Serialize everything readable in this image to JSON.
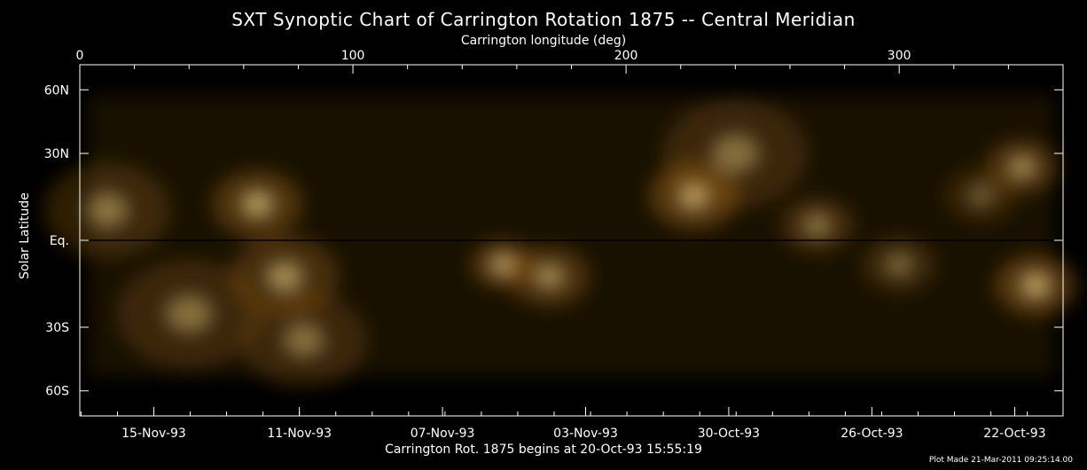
{
  "chart_data": {
    "type": "heatmap",
    "title": "SXT Synoptic Chart of Carrington Rotation 1875 -- Central Meridian",
    "top_axis": {
      "label": "Carrington longitude (deg)",
      "range": [
        0,
        360
      ],
      "ticks": [
        0,
        100,
        200,
        300
      ],
      "tick_labels": [
        "0",
        "100",
        "200",
        "300"
      ]
    },
    "left_axis": {
      "label": "Solar Latitude",
      "ticks": [
        {
          "label": "60N",
          "sine_latitude": 0.866
        },
        {
          "label": "30N",
          "sine_latitude": 0.5
        },
        {
          "label": "Eq.",
          "sine_latitude": 0
        },
        {
          "label": "30S",
          "sine_latitude": -0.5
        },
        {
          "label": "60S",
          "sine_latitude": -0.866
        }
      ]
    },
    "bottom_axis": {
      "label": "Carrington Rot. 1875 begins at 20-Oct-93 15:55:19",
      "tick_labels": [
        {
          "label": "15-Nov-93",
          "longitude": 27.1
        },
        {
          "label": "11-Nov-93",
          "longitude": 80.4
        },
        {
          "label": "07-Nov-93",
          "longitude": 132.8
        },
        {
          "label": "03-Nov-93",
          "longitude": 185.2
        },
        {
          "label": "30-Oct-93",
          "longitude": 237.6
        },
        {
          "label": "26-Oct-93",
          "longitude": 290.0
        },
        {
          "label": "22-Oct-93",
          "longitude": 342.3
        }
      ]
    },
    "equator_line": true,
    "colormap": {
      "low": "#000000",
      "mid": "#8a5a10",
      "high": "#ffe9a0"
    },
    "emission_regions": [
      {
        "longitude": 10,
        "latitude": 10,
        "intensity": 0.6,
        "spread": 14
      },
      {
        "longitude": 40,
        "latitude": -25,
        "intensity": 0.55,
        "spread": 16
      },
      {
        "longitude": 65,
        "latitude": 12,
        "intensity": 0.9,
        "spread": 10
      },
      {
        "longitude": 75,
        "latitude": -12,
        "intensity": 0.75,
        "spread": 12
      },
      {
        "longitude": 82,
        "latitude": -35,
        "intensity": 0.55,
        "spread": 14
      },
      {
        "longitude": 155,
        "latitude": -8,
        "intensity": 1.0,
        "spread": 7
      },
      {
        "longitude": 172,
        "latitude": -12,
        "intensity": 0.8,
        "spread": 9
      },
      {
        "longitude": 225,
        "latitude": 15,
        "intensity": 1.0,
        "spread": 10
      },
      {
        "longitude": 240,
        "latitude": 30,
        "intensity": 0.55,
        "spread": 16
      },
      {
        "longitude": 270,
        "latitude": 5,
        "intensity": 0.7,
        "spread": 8
      },
      {
        "longitude": 300,
        "latitude": -8,
        "intensity": 0.6,
        "spread": 8
      },
      {
        "longitude": 345,
        "latitude": 25,
        "intensity": 0.85,
        "spread": 8
      },
      {
        "longitude": 350,
        "latitude": -15,
        "intensity": 1.0,
        "spread": 9
      },
      {
        "longitude": 330,
        "latitude": 15,
        "intensity": 0.5,
        "spread": 8
      }
    ]
  },
  "credit": "Plot Made 21-Mar-2011 09:25:14.00"
}
